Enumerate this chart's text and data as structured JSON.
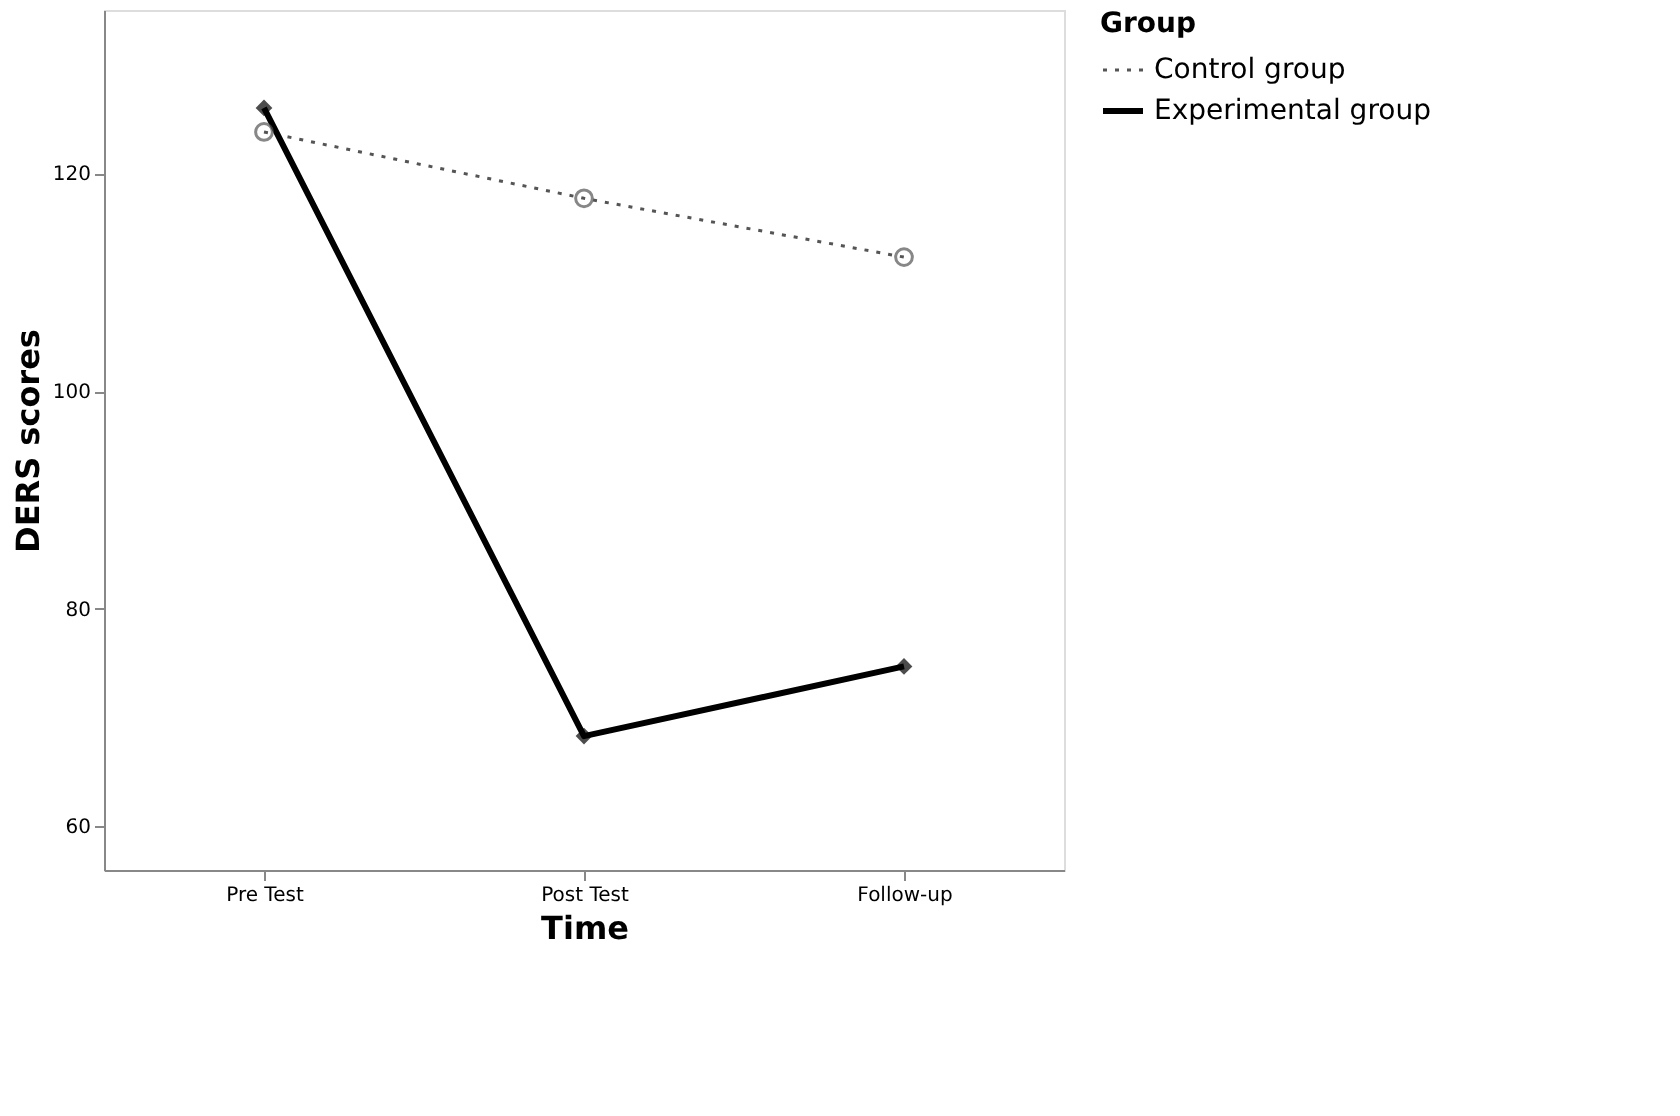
{
  "chart_data": {
    "type": "line",
    "xlabel": "Time",
    "ylabel": "DERS scores",
    "legend_title": "Group",
    "legend": "top right",
    "grid": false,
    "categories": [
      "Pre Test",
      "Post Test",
      "Follow-up"
    ],
    "ylim": [
      56,
      135
    ],
    "yticks": [
      60,
      80,
      100,
      120
    ],
    "series": [
      {
        "name": "Control group",
        "color": "#555555",
        "line_style": "dotted",
        "marker": "circle",
        "values": [
          123.8,
          117.7,
          112.3
        ]
      },
      {
        "name": "Experimental group",
        "color": "#000000",
        "line_style": "solid",
        "marker": "diamond",
        "values": [
          126,
          68.3,
          74.7
        ]
      }
    ]
  }
}
